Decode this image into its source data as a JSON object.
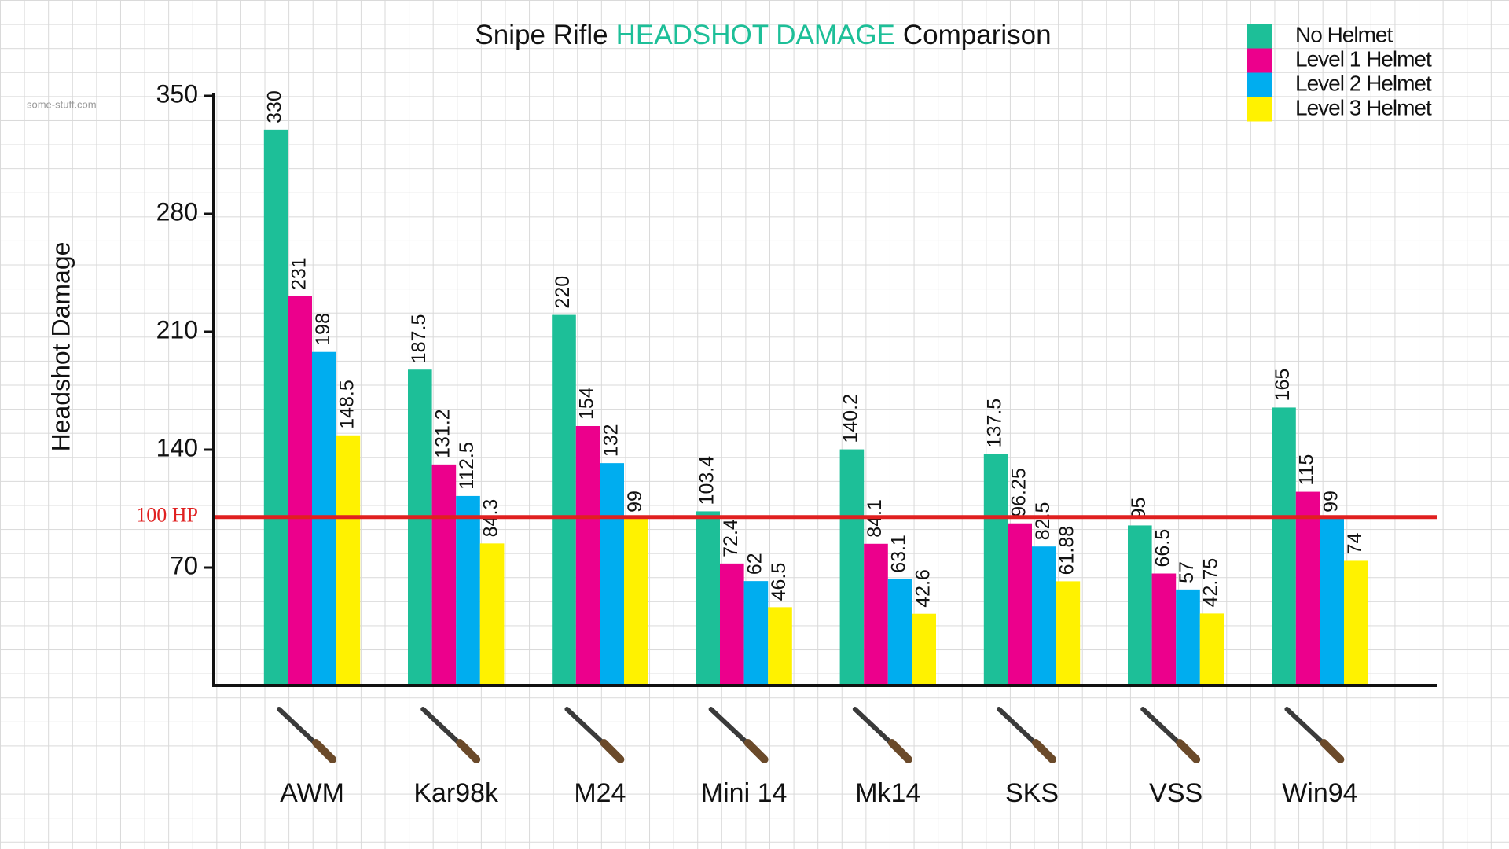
{
  "chart_data": {
    "type": "bar",
    "title": {
      "before": "Snipe Rifle",
      "highlight": "HEADSHOT DAMAGE",
      "after": "Comparison",
      "highlight_color": "#1dbf98"
    },
    "watermark": "some-stuff.com",
    "y_label": "Headshot Damage",
    "categories": [
      "AWM",
      "Kar98k",
      "M24",
      "Mini 14",
      "Mk14",
      "SKS",
      "VSS",
      "Win94"
    ],
    "series": [
      {
        "name": "No Helmet",
        "color": "#1dbf98",
        "values": [
          330,
          187.5,
          220,
          103.4,
          140.2,
          137.5,
          95,
          165
        ]
      },
      {
        "name": "Level 1 Helmet",
        "color": "#ec008c",
        "values": [
          231,
          131.2,
          154,
          72.4,
          84.1,
          96.25,
          66.5,
          115
        ]
      },
      {
        "name": "Level 2 Helmet",
        "color": "#00adef",
        "values": [
          198,
          112.5,
          132,
          62,
          63.1,
          82.5,
          57,
          99
        ]
      },
      {
        "name": "Level 3 Helmet",
        "color": "#fff200",
        "values": [
          148.5,
          84.3,
          99,
          46.5,
          42.6,
          61.88,
          42.75,
          74
        ]
      }
    ],
    "ylim": [
      0,
      350
    ],
    "yticks": [
      70,
      140,
      210,
      280,
      350
    ],
    "reference_line": {
      "value": 100,
      "label": "100 HP",
      "color": "#e02020"
    },
    "legend": "top-right"
  }
}
